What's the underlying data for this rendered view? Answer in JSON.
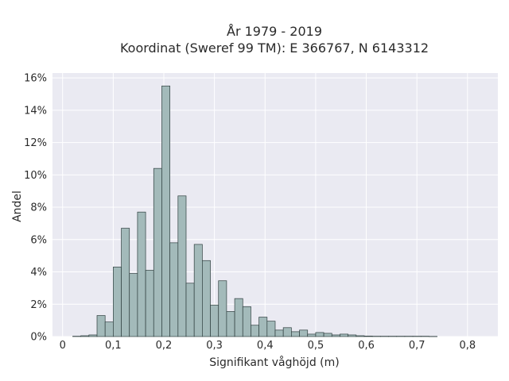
{
  "chart_data": {
    "type": "bar",
    "title_lines": [
      "År 1979 - 2019",
      "Koordinat (Sweref 99 TM): E 366767, N 6143312"
    ],
    "xlabel": "Signifikant våghöjd (m)",
    "ylabel": "Andel",
    "xlim": [
      -0.02,
      0.86
    ],
    "ylim": [
      0,
      16.3
    ],
    "x_ticks": [
      0,
      0.1,
      0.2,
      0.3,
      0.4,
      0.5,
      0.6,
      0.7,
      0.8
    ],
    "x_tick_labels": [
      "0",
      "0,1",
      "0,2",
      "0,3",
      "0,4",
      "0,5",
      "0,6",
      "0,7",
      "0,8"
    ],
    "y_ticks": [
      0,
      2,
      4,
      6,
      8,
      10,
      12,
      14,
      16
    ],
    "y_tick_labels": [
      "0%",
      "2%",
      "4%",
      "6%",
      "8%",
      "10%",
      "12%",
      "14%",
      "16%"
    ],
    "grid": true,
    "bin_width": 0.016,
    "bin_starts": [
      0.02,
      0.036,
      0.052,
      0.068,
      0.084,
      0.1,
      0.116,
      0.132,
      0.148,
      0.164,
      0.18,
      0.196,
      0.212,
      0.228,
      0.244,
      0.26,
      0.276,
      0.292,
      0.308,
      0.324,
      0.34,
      0.356,
      0.372,
      0.388,
      0.404,
      0.42,
      0.436,
      0.452,
      0.468,
      0.484,
      0.5,
      0.516,
      0.532,
      0.548,
      0.564,
      0.58,
      0.596,
      0.612,
      0.628,
      0.644,
      0.66,
      0.676,
      0.692,
      0.708,
      0.724
    ],
    "values": [
      0.02,
      0.05,
      0.1,
      1.3,
      0.9,
      4.3,
      6.7,
      3.9,
      7.7,
      4.1,
      10.4,
      15.5,
      5.8,
      8.7,
      3.3,
      5.7,
      4.7,
      1.95,
      3.45,
      1.55,
      2.35,
      1.85,
      0.7,
      1.2,
      0.95,
      0.4,
      0.55,
      0.3,
      0.4,
      0.15,
      0.25,
      0.2,
      0.1,
      0.15,
      0.1,
      0.05,
      0.03,
      0.02,
      0.02,
      0.02,
      0.02,
      0.02,
      0.02,
      0.02,
      0.01
    ]
  }
}
